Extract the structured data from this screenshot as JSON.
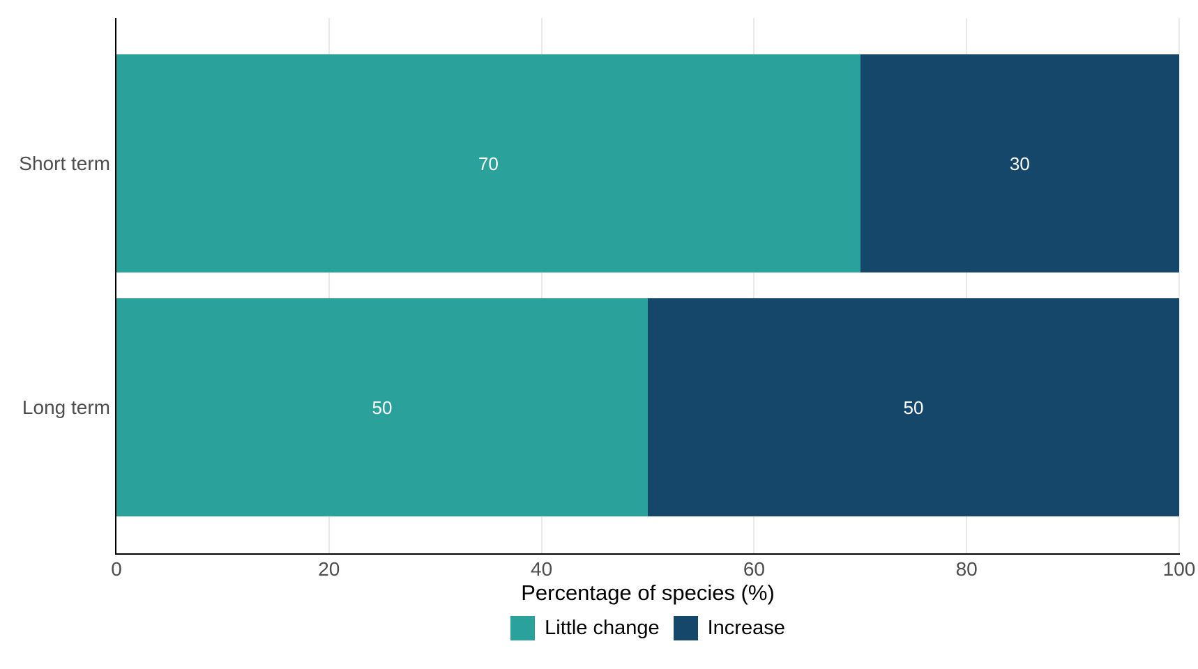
{
  "chart_data": {
    "type": "bar",
    "orientation": "horizontal",
    "stacked": true,
    "title": "",
    "xlabel": "Percentage of species (%)",
    "ylabel": "",
    "categories": [
      "Short term",
      "Long term"
    ],
    "series": [
      {
        "name": "Little change",
        "color": "#2aa19a",
        "values": [
          70,
          50
        ]
      },
      {
        "name": "Increase",
        "color": "#15476b",
        "values": [
          30,
          50
        ]
      }
    ],
    "x_ticks": [
      0,
      20,
      40,
      60,
      80,
      100
    ],
    "xlim": [
      0,
      100
    ],
    "bar_labels_shown": true,
    "bar_label_color": "#ffffff",
    "grid": "vertical",
    "gridline_color": "#e9e9e9",
    "axis_line_color": "#000000",
    "tick_text_color": "#4d4d4d",
    "legend_position": "bottom"
  }
}
